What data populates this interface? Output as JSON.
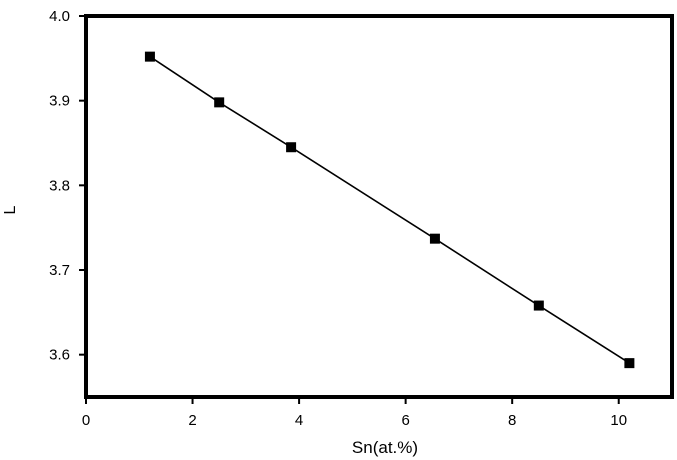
{
  "chart_data": {
    "type": "line",
    "title": "",
    "xlabel": "Sn(at.%)",
    "ylabel": "L",
    "xlim": [
      0,
      11
    ],
    "ylim": [
      3.55,
      4.0
    ],
    "xticks": [
      0,
      2,
      4,
      6,
      8,
      10
    ],
    "yticks": [
      3.6,
      3.7,
      3.8,
      3.9,
      4.0
    ],
    "xtick_labels": [
      "0",
      "2",
      "4",
      "6",
      "8",
      "10"
    ],
    "ytick_labels": [
      "3.6",
      "3.7",
      "3.8",
      "3.9",
      "4.0"
    ],
    "grid": false,
    "legend": "none",
    "marker": "square",
    "color": "#000000",
    "series": [
      {
        "x": [
          1.2,
          2.5,
          3.85,
          6.55,
          8.5,
          10.2
        ],
        "y": [
          3.952,
          3.898,
          3.845,
          3.737,
          3.658,
          3.59
        ]
      }
    ]
  }
}
